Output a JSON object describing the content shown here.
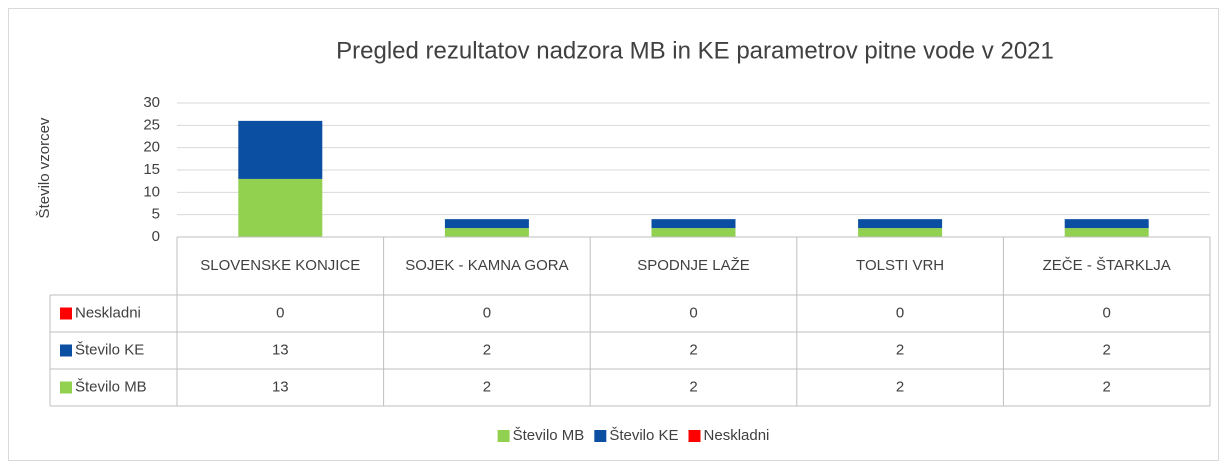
{
  "chart_data": {
    "type": "bar",
    "stacked": true,
    "title": "Pregled rezultatov nadzora MB in KE parametrov pitne vode v 2021",
    "y_label": "Število vzorcev",
    "categories": [
      "SLOVENSKE KONJICE",
      "SOJEK - KAMNA GORA",
      "SPODNJE LAŽE",
      "TOLSTI VRH",
      "ZEČE - ŠTARKLJA"
    ],
    "series": [
      {
        "name": "Število MB",
        "color": "#92d050",
        "values": [
          13,
          2,
          2,
          2,
          2
        ]
      },
      {
        "name": "Število KE",
        "color": "#0b4fa3",
        "values": [
          13,
          2,
          2,
          2,
          2
        ]
      },
      {
        "name": "Neskladni",
        "color": "#ff0000",
        "values": [
          0,
          0,
          0,
          0,
          0
        ]
      }
    ],
    "ylim": [
      0,
      30
    ],
    "yticks": [
      0,
      5,
      10,
      15,
      20,
      25,
      30
    ],
    "grid": true,
    "legend": "bottom",
    "data_table": true
  }
}
